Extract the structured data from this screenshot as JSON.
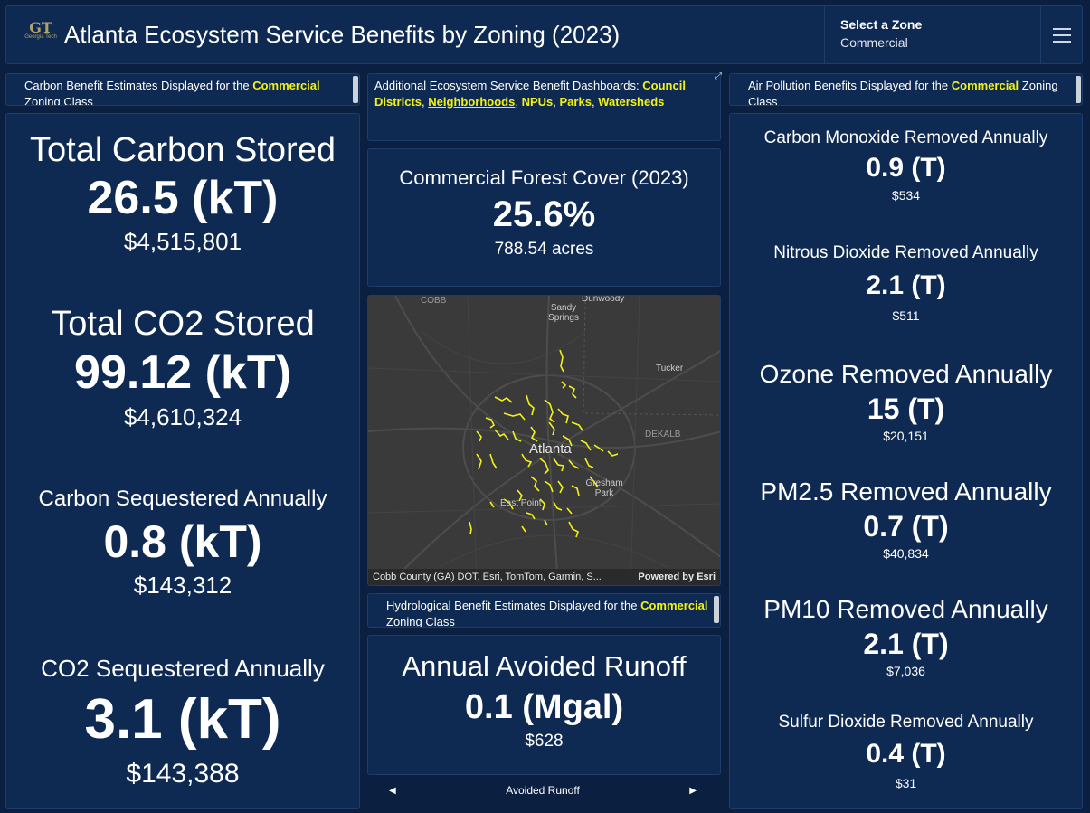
{
  "header": {
    "logo_letters": "GT",
    "logo_sub": "Georgia Tech",
    "title": "Atlanta Ecosystem Service Benefits by Zoning (2023)",
    "zone_label": "Select a Zone",
    "zone_value": "Commercial"
  },
  "carbon_strip": {
    "text_before": "Carbon Benefit Estimates Displayed for the",
    "zone": "Commercial",
    "text_after": "Zoning Class"
  },
  "dashboards_strip": {
    "text": "Additional Ecosystem Service Benefit Dashboards:",
    "link_council": "Council Districts",
    "sep1": ",",
    "link_neighborhoods": "Neighborhoods",
    "sep2": ",",
    "link_npus": "NPUs",
    "sep3": ",",
    "link_parks": "Parks",
    "sep4": ",",
    "link_watersheds": "Watersheds"
  },
  "air_strip": {
    "text_before": "Air Pollution Benefits Displayed for the",
    "zone": "Commercial",
    "text_after": "Zoning Class"
  },
  "hydro_strip": {
    "text_before": "Hydrological Benefit Estimates Displayed for the",
    "zone": "Commercial",
    "text_after": "Zoning Class"
  },
  "carbon_metrics": [
    {
      "label": "Total Carbon Stored",
      "value": "26.5 (kT)",
      "money": "$4,515,801"
    },
    {
      "label": "Total CO2 Stored",
      "value": "99.12 (kT)",
      "money": "$4,610,324"
    },
    {
      "label": "Carbon Sequestered Annually",
      "value": "0.8 (kT)",
      "money": "$143,312"
    },
    {
      "label": "CO2 Sequestered Annually",
      "value": "3.1 (kT)",
      "money": "$143,388"
    }
  ],
  "forest": {
    "label": "Commercial Forest Cover (2023)",
    "value": "25.6%",
    "acres": "788.54 acres"
  },
  "map": {
    "labels": {
      "cobb": "COBB",
      "dunwoody": "Dunwoody",
      "sandy_springs": "Sandy Springs",
      "tucker": "Tucker",
      "atlanta": "Atlanta",
      "dekalb": "DEKALB",
      "gresham_park": "Gresham Park",
      "east_point": "East Point"
    },
    "attribution": "Cobb County (GA) DOT, Esri, TomTom, Garmin, S...",
    "powered_by": "Powered by Esri",
    "highlight_color": "#f2f21a"
  },
  "runoff": {
    "label": "Annual Avoided Runoff",
    "value": "0.1 (Mgal)",
    "money": "$628",
    "nav_label": "Avoided Runoff"
  },
  "air_metrics": [
    {
      "label": "Carbon Monoxide Removed Annually",
      "value": "0.9 (T)",
      "money": "$534"
    },
    {
      "label": "Nitrous Dioxide Removed Annually",
      "value": "2.1 (T)",
      "money": "$511"
    },
    {
      "label": "Ozone Removed Annually",
      "value": "15 (T)",
      "money": "$20,151"
    },
    {
      "label": "PM2.5 Removed Annually",
      "value": "0.7 (T)",
      "money": "$40,834"
    },
    {
      "label": "PM10 Removed Annually",
      "value": "2.1 (T)",
      "money": "$7,036"
    },
    {
      "label": "Sulfur Dioxide Removed Annually",
      "value": "0.4 (T)",
      "money": "$31"
    }
  ],
  "colors": {
    "background": "#0b2041",
    "panel": "#0e2a52",
    "highlight": "#f2f21a",
    "gt_gold": "#b3a369"
  },
  "icons": {
    "menu": "hamburger-menu-icon",
    "expand": "expand-icon",
    "prev": "chevron-left-icon",
    "next": "chevron-right-icon"
  }
}
